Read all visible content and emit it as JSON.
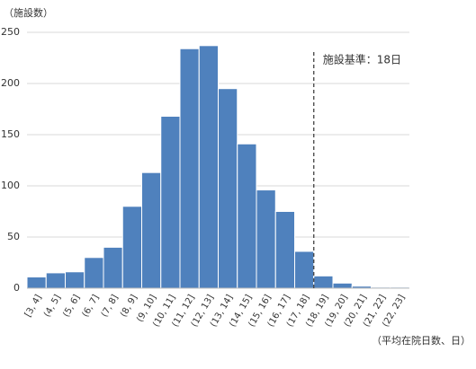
{
  "chart_data": {
    "type": "histogram",
    "y_label": "（施設数）",
    "x_label": "（平均在院日数、日）",
    "bins": [
      3,
      4,
      5,
      6,
      7,
      8,
      9,
      10,
      11,
      12,
      13,
      14,
      15,
      16,
      17,
      18,
      19,
      20,
      21,
      22,
      23
    ],
    "categories": [
      "[3, 4]",
      "(4, 5]",
      "(5, 6]",
      "(6, 7]",
      "(7, 8]",
      "(8, 9]",
      "(9, 10]",
      "(10, 11]",
      "(11, 12]",
      "(12, 13]",
      "(13, 14]",
      "(14, 15]",
      "(15, 16]",
      "(16, 17]",
      "(17, 18]",
      "(18, 19]",
      "(19, 20]",
      "(20, 21]",
      "(21, 22]",
      "(22, 23]"
    ],
    "values": [
      11,
      15,
      16,
      30,
      40,
      80,
      113,
      168,
      234,
      237,
      195,
      141,
      96,
      75,
      36,
      12,
      5,
      2,
      1,
      1
    ],
    "color": "#4f81bd",
    "xlim": [
      3,
      23
    ],
    "ylim": [
      0,
      250
    ],
    "yticks": [
      0,
      50,
      100,
      150,
      200,
      250
    ],
    "grid": true,
    "reference_line": {
      "x": 18,
      "label": "施設基準：18日"
    }
  }
}
